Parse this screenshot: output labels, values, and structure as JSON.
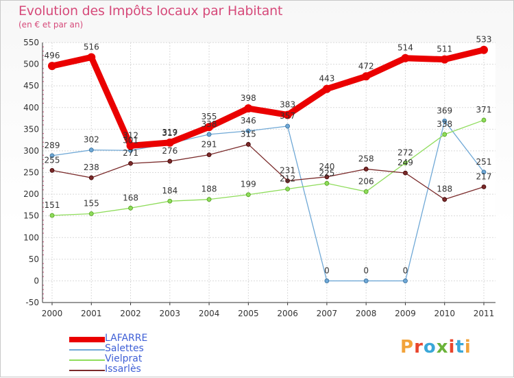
{
  "title": "Evolution des Impôts locaux par Habitant",
  "subtitle": "(en € et par an)",
  "logo_letters": [
    "P",
    "r",
    "o",
    "x",
    "i",
    "t",
    "i"
  ],
  "logo_colors": [
    "#f2a33a",
    "#e8452c",
    "#3aa7d8",
    "#6bb33a",
    "#e8452c",
    "#3aa7d8",
    "#f2a33a"
  ],
  "chart_data": {
    "type": "line",
    "title": "Evolution des Impôts locaux par Habitant",
    "ylabel": "(en € et par an)",
    "xlabel": "",
    "ylim": [
      -50,
      550
    ],
    "yticks": [
      "-50",
      "0",
      "50",
      "100",
      "150",
      "200",
      "250",
      "300",
      "350",
      "400",
      "450",
      "500",
      "550"
    ],
    "ytick_values": [
      -50,
      0,
      50,
      100,
      150,
      200,
      250,
      300,
      350,
      400,
      450,
      500,
      550
    ],
    "categories": [
      "2000",
      "2001",
      "2002",
      "2003",
      "2004",
      "2005",
      "2006",
      "2007",
      "2008",
      "2009",
      "2010",
      "2011"
    ],
    "grid": true,
    "legend_position": "bottom-left",
    "series": [
      {
        "name": "LAFARRE",
        "color": "#ea0000",
        "width": 9,
        "labels": [
          "496",
          "516",
          "312",
          "319",
          "355",
          "398",
          "383",
          "443",
          "472",
          "514",
          "511",
          "533"
        ],
        "values": [
          496,
          516,
          312,
          319,
          355,
          398,
          383,
          443,
          472,
          514,
          511,
          533
        ]
      },
      {
        "name": "Salettes",
        "color": "#6fa8d6",
        "width": 1.3,
        "labels": [
          "289",
          "302",
          "301",
          "317",
          "338",
          "346",
          "357",
          "0",
          "0",
          "0",
          "369",
          "251"
        ],
        "values": [
          289,
          302,
          301,
          317,
          338,
          346,
          357,
          0,
          0,
          0,
          369,
          251
        ]
      },
      {
        "name": "Vielprat",
        "color": "#8edc5a",
        "width": 1.3,
        "labels": [
          "151",
          "155",
          "168",
          "184",
          "188",
          "199",
          "212",
          "225",
          "206",
          "272",
          "338",
          "371"
        ],
        "values": [
          151,
          155,
          168,
          184,
          188,
          199,
          212,
          225,
          206,
          272,
          338,
          371
        ]
      },
      {
        "name": "Issarlès",
        "color": "#7a2a2a",
        "width": 1.3,
        "labels": [
          "255",
          "238",
          "271",
          "276",
          "291",
          "315",
          "231",
          "240",
          "258",
          "249",
          "188",
          "217"
        ],
        "values": [
          255,
          238,
          271,
          276,
          291,
          315,
          231,
          240,
          258,
          249,
          188,
          217
        ]
      }
    ]
  }
}
